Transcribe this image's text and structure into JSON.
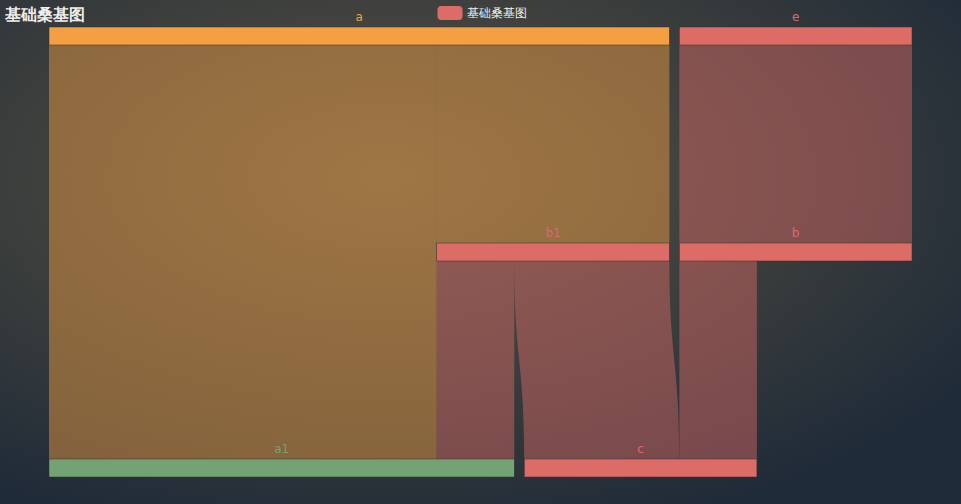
{
  "chart_data": {
    "type": "sankey",
    "title": "基础桑基图",
    "legend": "top",
    "series": [
      {
        "name": "基础桑基图",
        "color": "#dd6b66",
        "nodes": [
          {
            "name": "a",
            "color": "#f49f42"
          },
          {
            "name": "e",
            "color": "#dd6b66"
          },
          {
            "name": "b1",
            "color": "#dd6b66"
          },
          {
            "name": "b",
            "color": "#dd6b66"
          },
          {
            "name": "a1",
            "color": "#73a373"
          },
          {
            "name": "c",
            "color": "#dd6b66"
          }
        ],
        "links": [
          {
            "source": "a",
            "target": "a1",
            "value": 5
          },
          {
            "source": "a",
            "target": "b1",
            "value": 3
          },
          {
            "source": "e",
            "target": "b",
            "value": 3
          },
          {
            "source": "b1",
            "target": "a1",
            "value": 1
          },
          {
            "source": "b1",
            "target": "c",
            "value": 2
          },
          {
            "source": "b",
            "target": "c",
            "value": 1
          }
        ]
      }
    ]
  }
}
